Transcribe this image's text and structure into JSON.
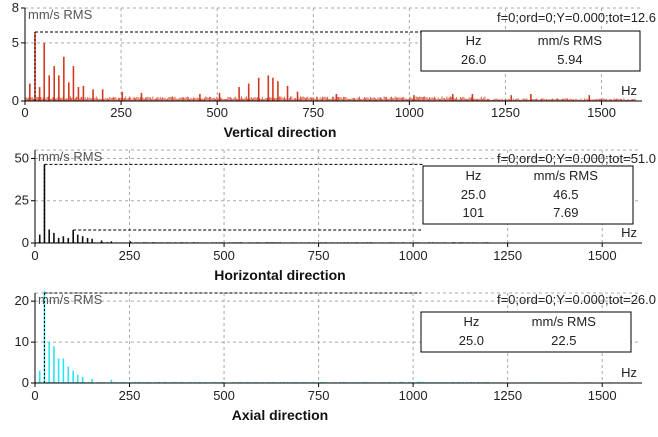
{
  "chart_data": [
    {
      "type": "bar",
      "title": "Vertical direction",
      "ylabel": "mm/s RMS",
      "xlabel": "Hz",
      "status": "f=0;ord=0;Y=0.000;tot=12.6",
      "color": "#d2391e",
      "xlim": [
        0,
        1600
      ],
      "ylim": [
        0,
        8
      ],
      "x_ticks": [
        "0",
        "250",
        "500",
        "750",
        "1000",
        "1250",
        "1500"
      ],
      "y_ticks": [
        "0",
        "5",
        "8"
      ],
      "cursor_table": {
        "headers": [
          "Hz",
          "mm/s RMS"
        ],
        "rows": [
          [
            "26.0",
            "5.94"
          ]
        ]
      },
      "cursors": [
        {
          "x": 26,
          "y": 5.94
        }
      ],
      "peaks": [
        {
          "x": 12.5,
          "y": 1.5
        },
        {
          "x": 26,
          "y": 5.94
        },
        {
          "x": 38,
          "y": 1.2
        },
        {
          "x": 50,
          "y": 5.0
        },
        {
          "x": 63,
          "y": 2.2
        },
        {
          "x": 76,
          "y": 3.0
        },
        {
          "x": 88,
          "y": 2.2
        },
        {
          "x": 101,
          "y": 3.8
        },
        {
          "x": 114,
          "y": 1.6
        },
        {
          "x": 126,
          "y": 3.0
        },
        {
          "x": 139,
          "y": 1.2
        },
        {
          "x": 152,
          "y": 1.3
        },
        {
          "x": 177,
          "y": 1.0
        },
        {
          "x": 202,
          "y": 1.0
        },
        {
          "x": 253,
          "y": 0.8
        },
        {
          "x": 303,
          "y": 0.7
        },
        {
          "x": 455,
          "y": 0.6
        },
        {
          "x": 506,
          "y": 0.7
        },
        {
          "x": 557,
          "y": 1.2
        },
        {
          "x": 582,
          "y": 1.5
        },
        {
          "x": 608,
          "y": 2.0
        },
        {
          "x": 633,
          "y": 2.2
        },
        {
          "x": 645,
          "y": 2.0
        },
        {
          "x": 658,
          "y": 1.7
        },
        {
          "x": 683,
          "y": 1.3
        },
        {
          "x": 709,
          "y": 0.8
        },
        {
          "x": 810,
          "y": 0.6
        },
        {
          "x": 1012,
          "y": 0.5
        },
        {
          "x": 1113,
          "y": 0.6
        },
        {
          "x": 1164,
          "y": 0.6
        },
        {
          "x": 1265,
          "y": 0.5
        },
        {
          "x": 1316,
          "y": 0.6
        },
        {
          "x": 1468,
          "y": 0.5
        }
      ],
      "noise_level": 0.4
    },
    {
      "type": "bar",
      "title": "Horizontal direction",
      "ylabel": "mm/s RMS",
      "xlabel": "Hz",
      "status": "f=0;ord=0;Y=0.000;tot=51.0",
      "color": "#111111",
      "xlim": [
        0,
        1600
      ],
      "ylim": [
        0,
        55
      ],
      "x_ticks": [
        "0",
        "250",
        "500",
        "750",
        "1000",
        "1250",
        "1500"
      ],
      "y_ticks": [
        "0",
        "25",
        "50"
      ],
      "cursor_table": {
        "headers": [
          "Hz",
          "mm/s RMS"
        ],
        "rows": [
          [
            "25.0",
            "46.5"
          ],
          [
            "101",
            "7.69"
          ]
        ]
      },
      "cursors": [
        {
          "x": 25,
          "y": 46.5
        },
        {
          "x": 101,
          "y": 7.69
        }
      ],
      "peaks": [
        {
          "x": 12.5,
          "y": 5
        },
        {
          "x": 25,
          "y": 46.5
        },
        {
          "x": 37.5,
          "y": 8
        },
        {
          "x": 50,
          "y": 6
        },
        {
          "x": 62.5,
          "y": 3
        },
        {
          "x": 75,
          "y": 4
        },
        {
          "x": 88,
          "y": 3
        },
        {
          "x": 101,
          "y": 7.69
        },
        {
          "x": 113,
          "y": 5
        },
        {
          "x": 126,
          "y": 4
        },
        {
          "x": 139,
          "y": 3
        },
        {
          "x": 151,
          "y": 2.5
        },
        {
          "x": 176,
          "y": 1.5
        },
        {
          "x": 202,
          "y": 1
        },
        {
          "x": 252,
          "y": 1
        }
      ],
      "noise_level": 0.5
    },
    {
      "type": "bar",
      "title": "Axial direction",
      "ylabel": "mm/s RMS",
      "xlabel": "Hz",
      "status": "f=0;ord=0;Y=0.000;tot=26.0",
      "color": "#2fe4f2",
      "xlim": [
        0,
        1600
      ],
      "ylim": [
        0,
        22
      ],
      "x_ticks": [
        "0",
        "250",
        "500",
        "750",
        "1000",
        "1250",
        "1500"
      ],
      "y_ticks": [
        "0",
        "10",
        "20"
      ],
      "cursor_table": {
        "headers": [
          "Hz",
          "mm/s RMS"
        ],
        "rows": [
          [
            "25.0",
            "22.5"
          ]
        ]
      },
      "cursors": [
        {
          "x": 25,
          "y": 22.5
        }
      ],
      "peaks": [
        {
          "x": 12.5,
          "y": 3
        },
        {
          "x": 25,
          "y": 22.5
        },
        {
          "x": 37.5,
          "y": 10
        },
        {
          "x": 50,
          "y": 9
        },
        {
          "x": 62.5,
          "y": 6
        },
        {
          "x": 75,
          "y": 6
        },
        {
          "x": 88,
          "y": 4
        },
        {
          "x": 101,
          "y": 3
        },
        {
          "x": 113,
          "y": 2
        },
        {
          "x": 126,
          "y": 1.5
        },
        {
          "x": 151,
          "y": 1
        },
        {
          "x": 202,
          "y": 0.8
        }
      ],
      "noise_level": 0.3
    }
  ]
}
